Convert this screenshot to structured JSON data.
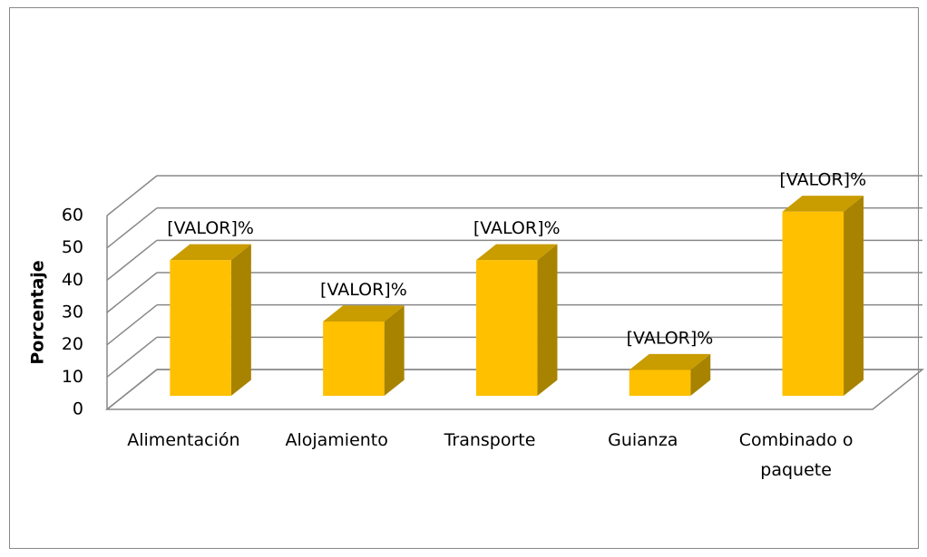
{
  "chart_data": {
    "type": "bar3d",
    "y_label": "Porcentaje",
    "categories": [
      "Alimentación",
      "Alojamiento",
      "Transporte",
      "Guianza",
      "Combinado o paquete"
    ],
    "values": [
      42,
      23,
      42,
      8,
      57
    ],
    "data_labels": [
      "[VALOR]%",
      "[VALOR]%",
      "[VALOR]%",
      "[VALOR]%",
      "[VALOR]%"
    ],
    "color": "#ffc000",
    "ylim": [
      0,
      60
    ],
    "yticks": [
      0,
      10,
      20,
      30,
      40,
      50,
      60
    ],
    "grid": true
  }
}
